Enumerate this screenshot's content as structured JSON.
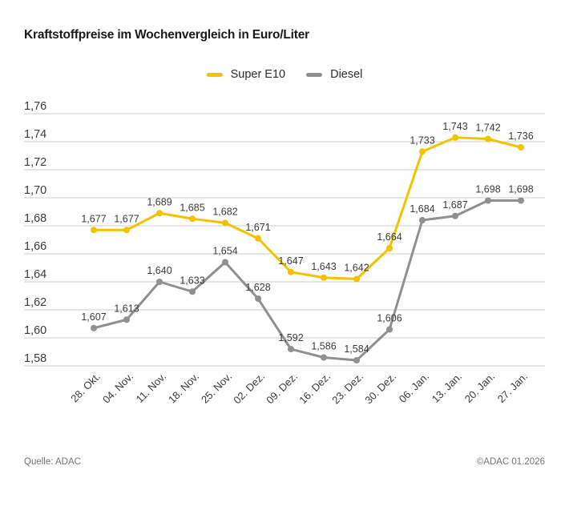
{
  "title": "Kraftstoffpreise im Wochenvergleich in Euro/Liter",
  "legend": [
    {
      "label": "Super E10",
      "color": "#F6C200"
    },
    {
      "label": "Diesel",
      "color": "#909090"
    }
  ],
  "footer": {
    "source": "Quelle: ADAC",
    "copyright": "©ADAC 01.2026"
  },
  "colors": {
    "super_e10": "#F6C200",
    "diesel": "#909090",
    "gridline": "#cccccc",
    "text": "#3b3b3b"
  },
  "chart_data": {
    "type": "line",
    "title": "Kraftstoffpreise im Wochenvergleich in Euro/Liter",
    "xlabel": "",
    "ylabel": "Euro/Liter",
    "categories": [
      "28. Okt.",
      "04. Nov.",
      "11. Nov.",
      "18. Nov.",
      "25. Nov.",
      "02. Dez.",
      "09. Dez.",
      "16. Dez.",
      "23. Dez.",
      "30. Dez.",
      "06. Jan.",
      "13. Jan.",
      "20. Jan.",
      "27. Jan."
    ],
    "series": [
      {
        "name": "Super E10",
        "color": "#F6C200",
        "values": [
          1.677,
          1.677,
          1.689,
          1.685,
          1.682,
          1.671,
          1.647,
          1.643,
          1.642,
          1.664,
          1.733,
          1.743,
          1.742,
          1.736
        ]
      },
      {
        "name": "Diesel",
        "color": "#909090",
        "values": [
          1.607,
          1.613,
          1.64,
          1.633,
          1.654,
          1.628,
          1.592,
          1.586,
          1.584,
          1.606,
          1.684,
          1.687,
          1.698,
          1.698
        ]
      }
    ],
    "ylim": [
      1.58,
      1.76
    ],
    "ytick_step": 0.02,
    "yticks": [
      "1,76",
      "1,74",
      "1,72",
      "1,70",
      "1,68",
      "1,66",
      "1,64",
      "1,62",
      "1,60",
      "1,58"
    ],
    "grid": true,
    "legend_position": "top-center",
    "value_labels": true,
    "value_label_format": "german-3-decimals"
  }
}
